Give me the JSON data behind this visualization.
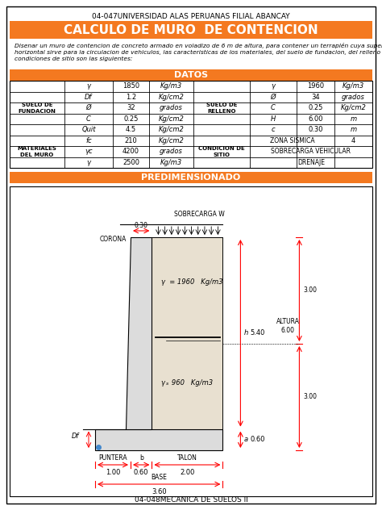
{
  "header_text": "04-047UNIVERSIDAD ALAS PERUANAS FILIAL ABANCAY",
  "footer_text": "04-048MECANICA DE SUELOS II",
  "title": "CALCULO DE MURO  DE CONTENCION",
  "description": "Disenar un muro de contencion de concreto armado en voladizo de 6 m de altura, para contener un terraplén cuya superficie\nhorizontal sirve para la circulacion de vehiculos, las caracteristicas de los materiales, del suelo de fundacion, del relleno y\ncondiciones de sitio son las siguientes:",
  "datos_title": "DATOS",
  "predim_title": "PREDIMENSIONADO",
  "orange_color": "#F47920",
  "sf_rows": [
    [
      "γ",
      "1850",
      "Kg/m3"
    ],
    [
      "Df",
      "1.2",
      "Kg/cm2"
    ],
    [
      "Ø",
      "32",
      "grados"
    ],
    [
      "C",
      "0.25",
      "Kg/cm2"
    ],
    [
      "Quit",
      "4.5",
      "Kg/cm2"
    ]
  ],
  "sr_rows": [
    [
      "γ",
      "1960",
      "Kg/m3"
    ],
    [
      "Ø",
      "34",
      "grados"
    ],
    [
      "C",
      "0.25",
      "Kg/cm2"
    ],
    [
      "H",
      "6.00",
      "m"
    ],
    [
      "c",
      "0.30",
      "m"
    ]
  ],
  "mat_rows": [
    [
      "fc",
      "210",
      "Kg/cm2"
    ],
    [
      "γc",
      "4200",
      "grados"
    ],
    [
      "γ",
      "2500",
      "Kg/m3"
    ]
  ],
  "cond_rows": [
    [
      "ZONA SISMICA",
      "4"
    ],
    [
      "SOBRECARGA VEHICULAR",
      ""
    ],
    [
      "DRENAJE",
      ""
    ]
  ]
}
